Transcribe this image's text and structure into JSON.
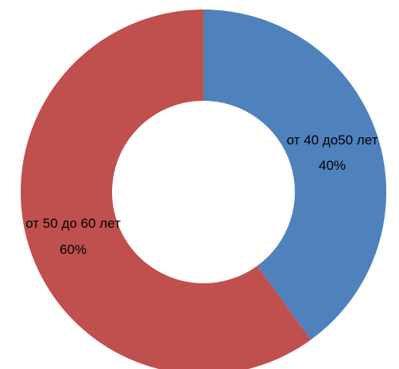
{
  "chart_data": {
    "type": "pie",
    "donut": true,
    "title": "",
    "slices": [
      {
        "label": "от 40 до50 лет",
        "value": 40,
        "percent_label": "40%",
        "color": "#4F81BD"
      },
      {
        "label": "от 50 до 60 лет",
        "value": 60,
        "percent_label": "60%",
        "color": "#C0504D"
      }
    ]
  }
}
